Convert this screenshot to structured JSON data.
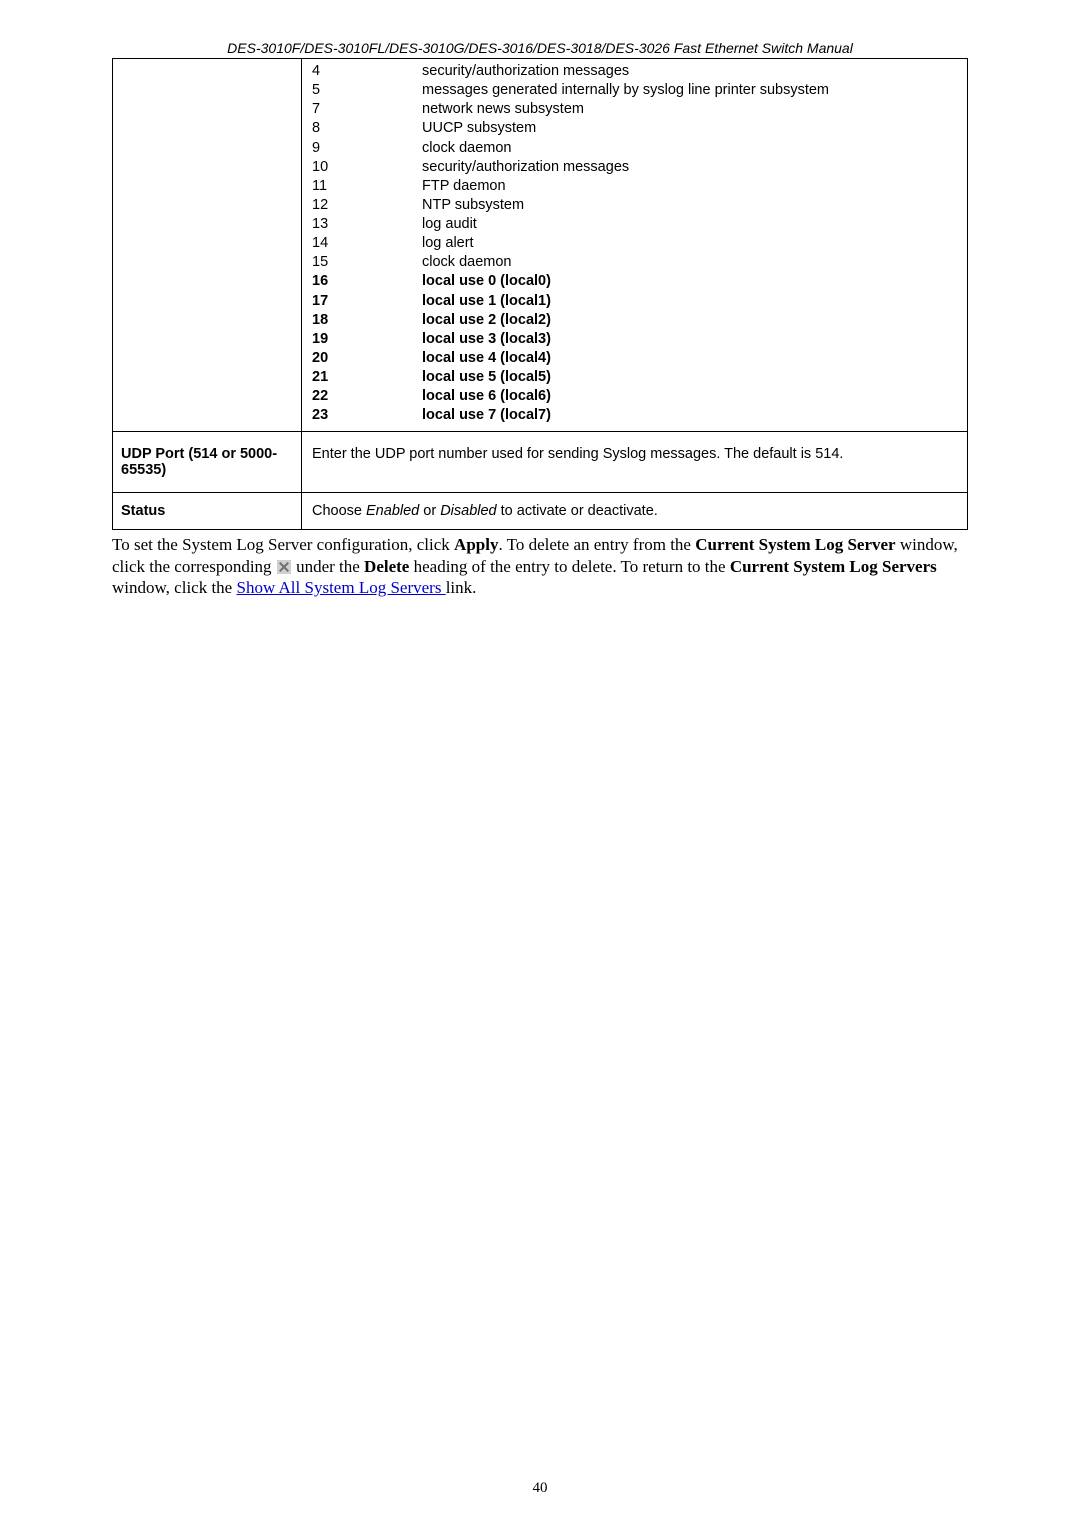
{
  "header": {
    "title": "DES-3010F/DES-3010FL/DES-3010G/DES-3016/DES-3018/DES-3026 Fast Ethernet Switch Manual"
  },
  "facilities": [
    {
      "num": "4",
      "desc": "security/authorization messages",
      "bold": false
    },
    {
      "num": "5",
      "desc": "messages generated internally by syslog line printer subsystem",
      "bold": false
    },
    {
      "num": "7",
      "desc": "network news subsystem",
      "bold": false
    },
    {
      "num": "8",
      "desc": "UUCP subsystem",
      "bold": false
    },
    {
      "num": "9",
      "desc": "clock daemon",
      "bold": false
    },
    {
      "num": "10",
      "desc": "security/authorization messages",
      "bold": false
    },
    {
      "num": "11",
      "desc": "FTP daemon",
      "bold": false
    },
    {
      "num": "12",
      "desc": "NTP subsystem",
      "bold": false
    },
    {
      "num": "13",
      "desc": "log audit",
      "bold": false
    },
    {
      "num": "14",
      "desc": "log alert",
      "bold": false
    },
    {
      "num": "15",
      "desc": "clock daemon",
      "bold": false
    },
    {
      "num": "16",
      "desc": "local use 0  (local0)",
      "bold": true
    },
    {
      "num": "17",
      "desc": "local use 1  (local1)",
      "bold": true
    },
    {
      "num": "18",
      "desc": "local use 2  (local2)",
      "bold": true
    },
    {
      "num": "19",
      "desc": "local use 3  (local3)",
      "bold": true
    },
    {
      "num": "20",
      "desc": "local use 4  (local4)",
      "bold": true
    },
    {
      "num": "21",
      "desc": "local use 5  (local5)",
      "bold": true
    },
    {
      "num": "22",
      "desc": "local use 6  (local6)",
      "bold": true
    },
    {
      "num": "23",
      "desc": "local use 7  (local7)",
      "bold": true
    }
  ],
  "rows": {
    "udp": {
      "label": "UDP Port (514 or 5000-65535)",
      "desc": "Enter the UDP port number used for sending Syslog messages. The default is 514."
    },
    "status": {
      "label": "Status",
      "pre": "Choose ",
      "em1": "Enabled",
      "mid": " or ",
      "em2": "Disabled",
      "post": " to activate or deactivate."
    }
  },
  "body": {
    "p1a": "To set the System Log Server configuration, click ",
    "p1b": "Apply",
    "p1c": ". To delete an entry from the ",
    "p1d": "Current System Log Server",
    "p1e": " window, click the corresponding ",
    "p1f": " under the ",
    "p1g": "Delete",
    "p1h": " heading of the entry to delete. To return to the ",
    "p1i": "Current System Log Servers",
    "p1j": " window, click the ",
    "link": "Show All System Log Servers ",
    "p1k": "link."
  },
  "pageNumber": "40"
}
